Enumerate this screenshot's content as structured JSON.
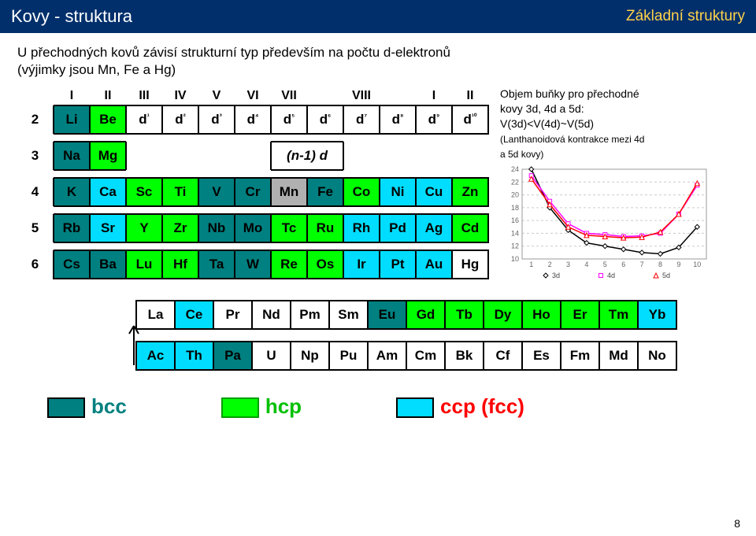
{
  "header": {
    "title": "Kovy - struktura",
    "subtitle": "Základní struktury"
  },
  "intro_line1": "U přechodných kovů závisí strukturní typ především na počtu d-elektronů",
  "intro_line2": "(výjimky jsou Mn, Fe a Hg)",
  "col_headers": [
    "I",
    "II",
    "III",
    "IV",
    "V",
    "VI",
    "VII",
    "VIII",
    "I",
    "II"
  ],
  "row_labels": [
    "2",
    "3",
    "4",
    "5",
    "6"
  ],
  "d_labels": [
    "d¹",
    "d²",
    "d³",
    "d⁴",
    "d⁵",
    "d⁶",
    "d⁷",
    "d⁸",
    "d⁹",
    "d¹⁰"
  ],
  "nd_label": "(n-1) d",
  "row2": [
    "Li",
    "Be"
  ],
  "row3": [
    "Na",
    "Mg"
  ],
  "row4": [
    "K",
    "Ca",
    "Sc",
    "Ti",
    "V",
    "Cr",
    "Mn",
    "Fe",
    "Co",
    "Ni",
    "Cu",
    "Zn"
  ],
  "row5": [
    "Rb",
    "Sr",
    "Y",
    "Zr",
    "Nb",
    "Mo",
    "Tc",
    "Ru",
    "Rh",
    "Pd",
    "Ag",
    "Cd"
  ],
  "row6": [
    "Cs",
    "Ba",
    "Lu",
    "Hf",
    "Ta",
    "W",
    "Re",
    "Os",
    "Ir",
    "Pt",
    "Au",
    "Hg"
  ],
  "lan": [
    "La",
    "Ce",
    "Pr",
    "Nd",
    "Pm",
    "Sm",
    "Eu",
    "Gd",
    "Tb",
    "Dy",
    "Ho",
    "Er",
    "Tm",
    "Yb"
  ],
  "act": [
    "Ac",
    "Th",
    "Pa",
    "U",
    "Np",
    "Pu",
    "Am",
    "Cm",
    "Bk",
    "Cf",
    "Es",
    "Fm",
    "Md",
    "No"
  ],
  "colors": {
    "bcc": "#008080",
    "hcp": "#00ff00",
    "ccp": "#00ddff",
    "gray": "#b0b0b0",
    "white": "#ffffff"
  },
  "row2_styles": [
    "bcc",
    "hcp"
  ],
  "row3_styles": [
    "bcc",
    "hcp"
  ],
  "row4_styles": [
    "bcc",
    "ccp",
    "hcp",
    "hcp",
    "bcc",
    "bcc",
    "gray",
    "bcc",
    "hcp",
    "ccp",
    "ccp",
    "hcp"
  ],
  "row5_styles": [
    "bcc",
    "ccp",
    "hcp",
    "hcp",
    "bcc",
    "bcc",
    "hcp",
    "hcp",
    "ccp",
    "ccp",
    "ccp",
    "hcp"
  ],
  "row6_styles": [
    "bcc",
    "bcc",
    "hcp",
    "hcp",
    "bcc",
    "bcc",
    "hcp",
    "hcp",
    "ccp",
    "ccp",
    "ccp",
    "wht"
  ],
  "lan_styles": [
    "wht",
    "ccp",
    "wht",
    "wht",
    "wht",
    "wht",
    "bcc",
    "hcp",
    "hcp",
    "hcp",
    "hcp",
    "hcp",
    "hcp",
    "ccp"
  ],
  "act_styles": [
    "ccp",
    "ccp",
    "bcc",
    "wht",
    "wht",
    "wht",
    "wht",
    "wht",
    "wht",
    "wht",
    "wht",
    "wht",
    "wht",
    "wht"
  ],
  "side_text_l1": "Objem buňky pro přechodné",
  "side_text_l2": "kovy 3d, 4d a 5d:",
  "side_text_l3": "V(3d)<V(4d)~V(5d)",
  "side_text_l4": "(Lanthanoidová kontrakce mezi 4d",
  "side_text_l5": "a 5d kovy)",
  "chart": {
    "type": "line",
    "x": [
      1,
      2,
      3,
      4,
      5,
      6,
      7,
      8,
      9,
      10
    ],
    "y_ticks": [
      10,
      12,
      14,
      16,
      18,
      20,
      22,
      24
    ],
    "series_3d": {
      "color": "#000000",
      "marker": "diamond",
      "values": [
        24,
        18,
        14.5,
        12.5,
        12,
        11.5,
        11,
        10.8,
        11.8,
        15
      ]
    },
    "series_4d": {
      "color": "#ff00ff",
      "marker": "square",
      "values": [
        23,
        19,
        15.5,
        14,
        13.8,
        13.5,
        13.6,
        14,
        17,
        21.5
      ]
    },
    "series_5d": {
      "color": "#ff0000",
      "marker": "triangle",
      "values": [
        22.5,
        18.5,
        15,
        13.7,
        13.5,
        13.3,
        13.4,
        14.2,
        17,
        21.8
      ]
    },
    "legend": [
      "3d",
      "4d",
      "5d"
    ],
    "grid_color": "#cccccc",
    "xlim": [
      0.5,
      10.5
    ],
    "ylim": [
      10,
      24
    ]
  },
  "legend": {
    "bcc": "bcc",
    "hcp": "hcp",
    "ccp": "ccp (fcc)"
  },
  "page_number": "8"
}
